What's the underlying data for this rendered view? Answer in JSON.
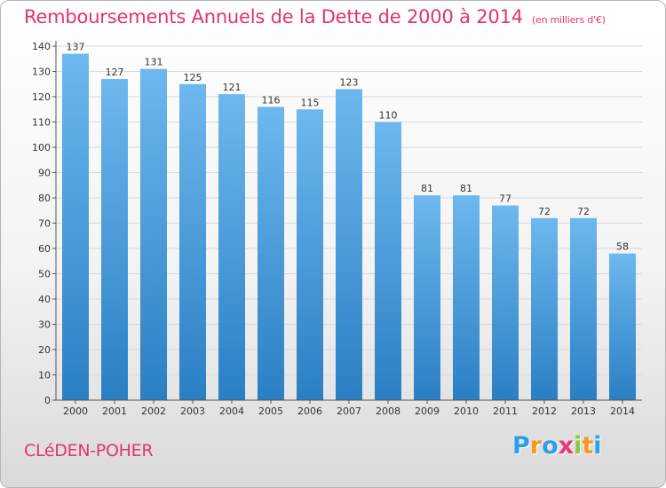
{
  "header": {
    "title": "Remboursements Annuels de la Dette de 2000 à 2014",
    "subtitle": "(en milliers d'€)"
  },
  "footer": {
    "city": "CLéDEN-POHER",
    "logo": {
      "letters": [
        "P",
        "r",
        "o",
        "x",
        "i",
        "t",
        "i"
      ],
      "colors": [
        "#2e9fe3",
        "#f29a1d",
        "#2e9fe3",
        "#e8367a",
        "#8dc63f",
        "#f29a1d",
        "#2e9fe3"
      ]
    }
  },
  "chart_data": {
    "type": "bar",
    "title": "Remboursements Annuels de la Dette de 2000 à 2014",
    "xlabel": "",
    "ylabel": "",
    "categories": [
      "2000",
      "2001",
      "2002",
      "2003",
      "2004",
      "2005",
      "2006",
      "2007",
      "2008",
      "2009",
      "2010",
      "2011",
      "2012",
      "2013",
      "2014"
    ],
    "values": [
      137,
      127,
      131,
      125,
      121,
      116,
      115,
      123,
      110,
      81,
      81,
      77,
      72,
      72,
      58
    ],
    "ylim": [
      0,
      140
    ],
    "yticks": [
      0,
      10,
      20,
      30,
      40,
      50,
      60,
      70,
      80,
      90,
      100,
      110,
      120,
      130,
      140
    ],
    "grid": true,
    "colors": {
      "bar_top": "#6db8ee",
      "bar_bottom": "#2a7fc4",
      "grid": "#d9d9d9",
      "axis": "#555555",
      "text": "#333333"
    }
  }
}
